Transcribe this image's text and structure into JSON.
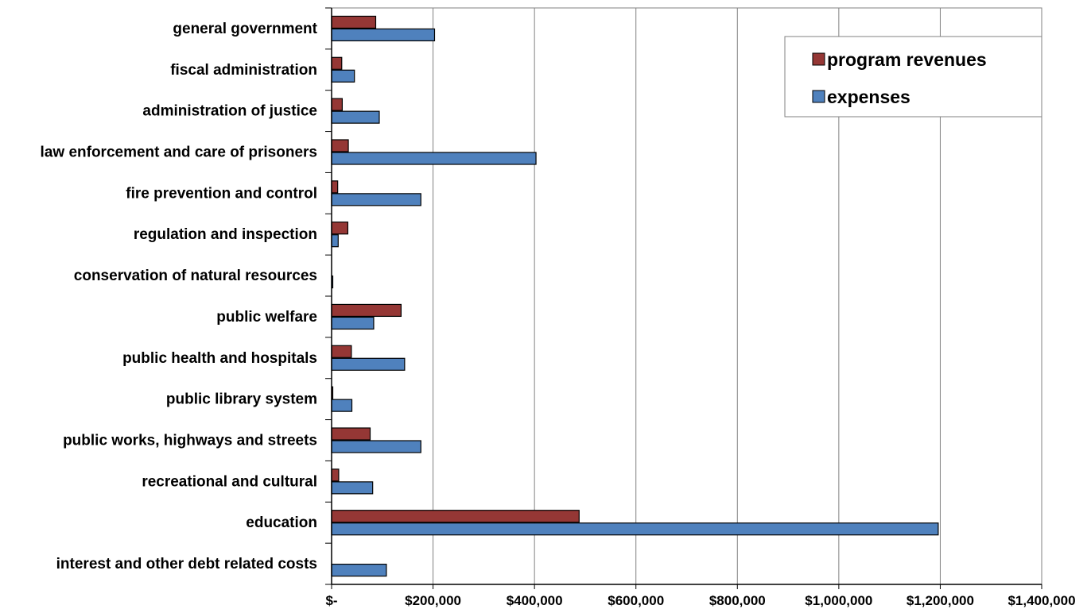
{
  "chart_data": {
    "type": "bar",
    "orientation": "horizontal",
    "categories": [
      "general government",
      "fiscal administration",
      "administration of justice",
      "law enforcement and care of prisoners",
      "fire prevention and control",
      "regulation and inspection",
      "conservation of natural resources",
      "public welfare",
      "public health and hospitals",
      "public library system",
      "public works, highways and streets",
      "recreational and cultural",
      "education",
      "interest and other debt related costs"
    ],
    "series": [
      {
        "name": "program revenues",
        "color": "#953735",
        "values": [
          87000,
          20000,
          21000,
          33000,
          12000,
          32000,
          0,
          137000,
          39000,
          1000,
          76000,
          14000,
          488000,
          0
        ]
      },
      {
        "name": "expenses",
        "color": "#4F81BD",
        "values": [
          203000,
          45000,
          94000,
          403000,
          176000,
          13000,
          1000,
          83000,
          144000,
          40000,
          176000,
          81000,
          1196000,
          108000
        ]
      }
    ],
    "xlim": [
      0,
      1400000
    ],
    "xticks": [
      0,
      200000,
      400000,
      600000,
      800000,
      1000000,
      1200000,
      1400000
    ],
    "xtick_labels": [
      "$-",
      "$200,000",
      "$400,000",
      "$600,000",
      "$800,000",
      "$1,000,000",
      "$1,200,000",
      "$1,400,000"
    ],
    "grid": "vertical",
    "legend_position": "top-right"
  }
}
